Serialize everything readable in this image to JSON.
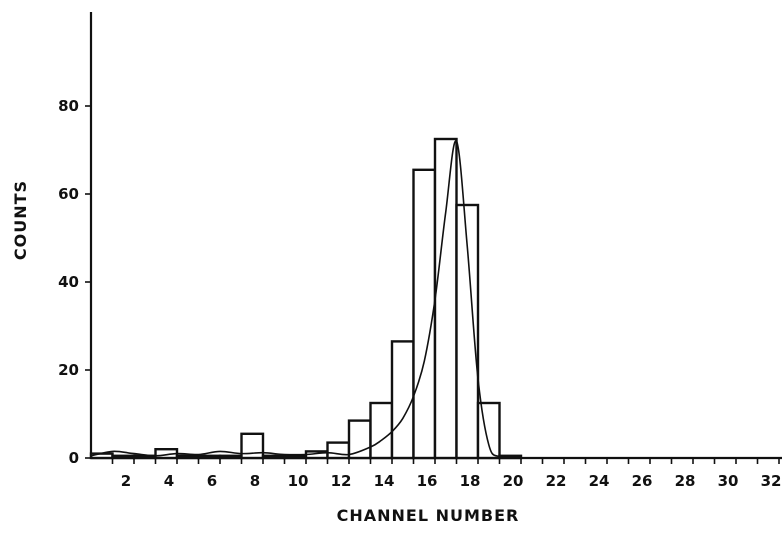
{
  "chart_data": {
    "type": "bar",
    "title": "",
    "xlabel": "CHANNEL NUMBER",
    "ylabel": "COUNTS",
    "xlim": [
      0,
      32
    ],
    "ylim": [
      0,
      100
    ],
    "x_ticks": [
      2,
      4,
      6,
      8,
      10,
      12,
      14,
      16,
      18,
      20,
      22,
      24,
      26,
      28,
      30,
      32
    ],
    "y_ticks": [
      0,
      20,
      40,
      60,
      80
    ],
    "grid": false,
    "legend": "none",
    "bars": [
      {
        "channel": 1,
        "count": 1
      },
      {
        "channel": 2,
        "count": 0.5
      },
      {
        "channel": 3,
        "count": 0.5
      },
      {
        "channel": 4,
        "count": 2
      },
      {
        "channel": 5,
        "count": 0.5
      },
      {
        "channel": 6,
        "count": 0.5
      },
      {
        "channel": 7,
        "count": 0.5
      },
      {
        "channel": 8,
        "count": 5.5
      },
      {
        "channel": 9,
        "count": 0.5
      },
      {
        "channel": 10,
        "count": 0.5
      },
      {
        "channel": 11,
        "count": 1.5
      },
      {
        "channel": 12,
        "count": 3.5
      },
      {
        "channel": 13,
        "count": 8.5
      },
      {
        "channel": 14,
        "count": 12.5
      },
      {
        "channel": 15,
        "count": 26.5
      },
      {
        "channel": 16,
        "count": 65.5
      },
      {
        "channel": 17,
        "count": 72.5
      },
      {
        "channel": 18,
        "count": 57.5
      },
      {
        "channel": 19,
        "count": 12.5
      },
      {
        "channel": 20,
        "count": 0.5
      }
    ],
    "curve": {
      "name": "",
      "x": [
        0,
        1,
        2,
        3,
        4,
        5,
        6,
        7,
        8,
        9,
        10,
        11,
        12,
        13,
        13.5,
        14,
        14.5,
        15,
        15.5,
        16,
        16.5,
        17,
        17.5,
        18,
        18.5,
        19,
        20,
        24,
        32
      ],
      "y": [
        0.5,
        1.5,
        1,
        0.5,
        1,
        0.8,
        1.5,
        1,
        1.2,
        0.8,
        0.8,
        1.2,
        0.8,
        2.5,
        4,
        6,
        9,
        14,
        22,
        36,
        56,
        72,
        48,
        18,
        3,
        0.3,
        0,
        0,
        0
      ]
    }
  }
}
